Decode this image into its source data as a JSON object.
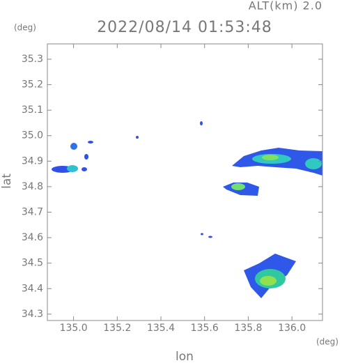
{
  "chart_data": {
    "type": "map",
    "title": "2022/08/14 01:53:48",
    "altitude_label": "ALT(km) 2.0",
    "x_label": "lon",
    "y_label": "lat",
    "x_unit": "(deg)",
    "y_unit": "(deg)",
    "xlim": [
      134.88,
      136.14
    ],
    "ylim": [
      34.275,
      35.36
    ],
    "xticks": [
      {
        "value": 135,
        "label": "135.0"
      },
      135.2,
      135.4,
      135.6,
      135.8,
      {
        "value": 136,
        "label": "136.0"
      }
    ],
    "yticks": [
      34.3,
      34.4,
      34.5,
      34.6,
      34.7,
      34.8,
      34.9,
      {
        "value": 35,
        "label": "35.0"
      },
      35.1,
      35.2,
      35.3
    ]
  }
}
